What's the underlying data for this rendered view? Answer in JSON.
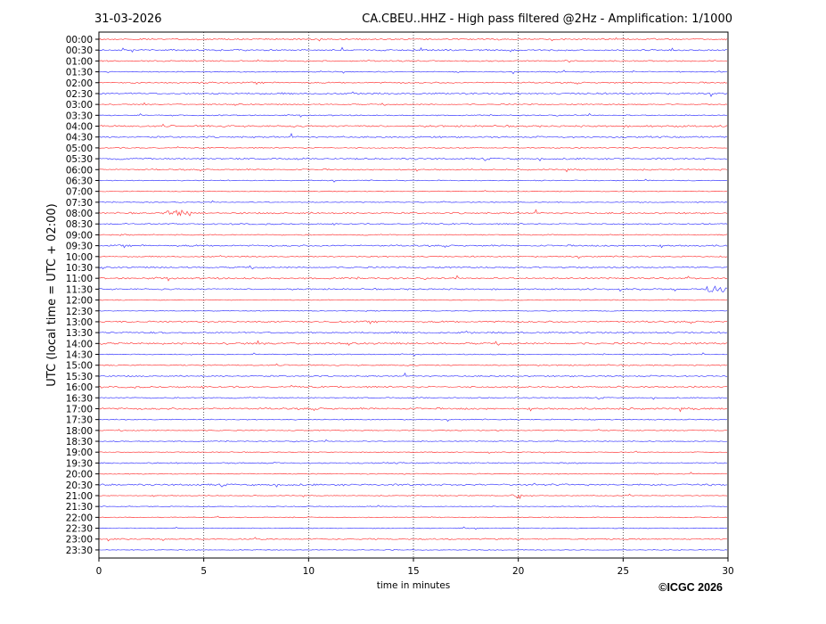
{
  "chart_data": {
    "type": "line",
    "subtype": "helicorder",
    "date": "31-03-2026",
    "title": "CA.CBEU..HHZ - High pass filtered @2Hz - Amplification: 1/1000",
    "xlabel": "time in minutes",
    "ylabel": "UTC (local time = UTC + 02:00)",
    "xlim": [
      0,
      30
    ],
    "xticks": [
      "0",
      "5",
      "10",
      "15",
      "20",
      "25",
      "30"
    ],
    "grid": "vertical dotted at every 5 minutes",
    "row_labels": [
      "00:00",
      "00:30",
      "01:00",
      "01:30",
      "02:00",
      "02:30",
      "03:00",
      "03:30",
      "04:00",
      "04:30",
      "05:00",
      "05:30",
      "06:00",
      "06:30",
      "07:00",
      "07:30",
      "08:00",
      "08:30",
      "09:00",
      "09:30",
      "10:00",
      "10:30",
      "11:00",
      "11:30",
      "12:00",
      "12:30",
      "13:00",
      "13:30",
      "14:00",
      "14:30",
      "15:00",
      "15:30",
      "16:00",
      "16:30",
      "17:00",
      "17:30",
      "18:00",
      "18:30",
      "19:00",
      "19:30",
      "20:00",
      "20:30",
      "21:00",
      "21:30",
      "22:00",
      "22:30",
      "23:00",
      "23:30"
    ],
    "trace_colors": [
      "#ff0000",
      "#0000ff"
    ],
    "events": [
      {
        "row": "08:00",
        "start_min": 3.2,
        "end_min": 4.4
      },
      {
        "row": "21:00",
        "start_min": 19.6,
        "end_min": 20.2
      },
      {
        "row": "11:30",
        "start_min": 29.0,
        "end_min": 30.0
      }
    ],
    "copyright": "©ICGC 2026"
  }
}
